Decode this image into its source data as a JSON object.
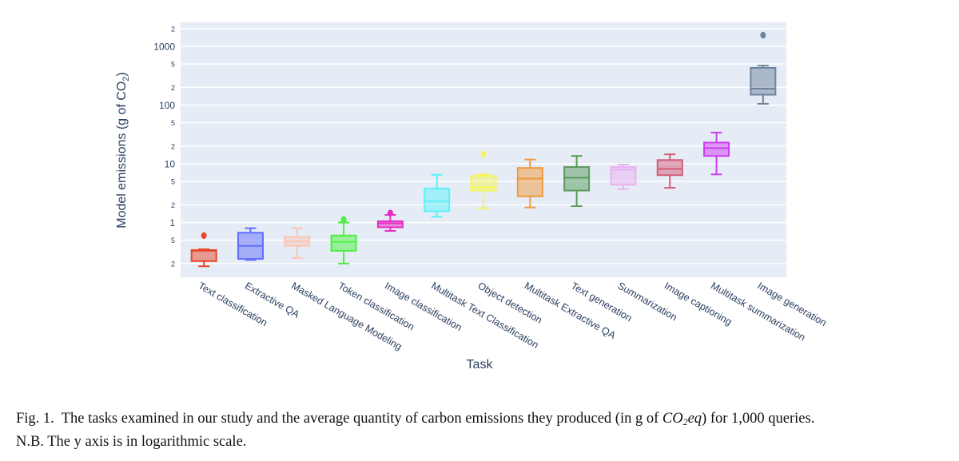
{
  "chart_data": {
    "type": "box",
    "title": "",
    "xlabel": "Task",
    "ylabel": "Model emissions (g of CO",
    "ylabel_sub": "2",
    "ylabel_end": ")",
    "yscale": "log",
    "ylim": [
      0.14,
      2400
    ],
    "grid": true,
    "legend": "none",
    "y_ticks": [
      {
        "value": 0.2,
        "label": "2",
        "major": false
      },
      {
        "value": 0.5,
        "label": "5",
        "major": false
      },
      {
        "value": 1,
        "label": "1",
        "major": true
      },
      {
        "value": 2,
        "label": "2",
        "major": false
      },
      {
        "value": 5,
        "label": "5",
        "major": false
      },
      {
        "value": 10,
        "label": "10",
        "major": true
      },
      {
        "value": 20,
        "label": "2",
        "major": false
      },
      {
        "value": 50,
        "label": "5",
        "major": false
      },
      {
        "value": 100,
        "label": "100",
        "major": true
      },
      {
        "value": 200,
        "label": "2",
        "major": false
      },
      {
        "value": 500,
        "label": "5",
        "major": false
      },
      {
        "value": 1000,
        "label": "1000",
        "major": true
      },
      {
        "value": 2000,
        "label": "2",
        "major": false
      }
    ],
    "categories": [
      "Text classification",
      "Extractive QA",
      "Masked Language Modeling",
      "Token classification",
      "Image classification",
      "Multitask Text Classification",
      "Object detection",
      "Multitask Extractive QA",
      "Text generation",
      "Summarization",
      "Image captioning",
      "Multitask summarization",
      "Image generation"
    ],
    "boxes": [
      {
        "task": "Text classification",
        "color": "#e8472b",
        "lower": 0.18,
        "q1": 0.22,
        "median": 0.33,
        "q3": 0.34,
        "upper": 0.35,
        "outliers": [
          0.6
        ]
      },
      {
        "task": "Extractive QA",
        "color": "#636efa",
        "lower": 0.23,
        "q1": 0.24,
        "median": 0.4,
        "q3": 0.67,
        "upper": 0.8,
        "outliers": []
      },
      {
        "task": "Masked Language Modeling",
        "color": "#f9c6b4",
        "lower": 0.25,
        "q1": 0.4,
        "median": 0.48,
        "q3": 0.57,
        "upper": 0.8,
        "outliers": []
      },
      {
        "task": "Token classification",
        "color": "#4cf03f",
        "lower": 0.2,
        "q1": 0.33,
        "median": 0.47,
        "q3": 0.6,
        "upper": 1.0,
        "outliers": [
          1.12
        ]
      },
      {
        "task": "Image classification",
        "color": "#e62bc4",
        "lower": 0.72,
        "q1": 0.83,
        "median": 0.97,
        "q3": 1.05,
        "upper": 1.35,
        "outliers": [
          1.45
        ]
      },
      {
        "task": "Multitask Text Classification",
        "color": "#5ef1f7",
        "lower": 1.25,
        "q1": 1.55,
        "median": 2.3,
        "q3": 3.8,
        "upper": 6.5,
        "outliers": []
      },
      {
        "task": "Object detection",
        "color": "#f6f45a",
        "lower": 1.75,
        "q1": 3.5,
        "median": 4.0,
        "q3": 6.2,
        "upper": 6.6,
        "outliers": [
          14.5
        ]
      },
      {
        "task": "Multitask Extractive QA",
        "color": "#ef9a3c",
        "lower": 1.8,
        "q1": 2.8,
        "median": 5.6,
        "q3": 8.5,
        "upper": 11.8,
        "outliers": []
      },
      {
        "task": "Text generation",
        "color": "#5a9a5a",
        "lower": 1.9,
        "q1": 3.5,
        "median": 5.8,
        "q3": 8.8,
        "upper": 13.6,
        "outliers": []
      },
      {
        "task": "Summarization",
        "color": "#e8b2f0",
        "lower": 3.7,
        "q1": 4.4,
        "median": 7.9,
        "q3": 8.8,
        "upper": 9.7,
        "outliers": []
      },
      {
        "task": "Image captioning",
        "color": "#d35c78",
        "lower": 3.9,
        "q1": 6.4,
        "median": 8.2,
        "q3": 11.6,
        "upper": 14.5,
        "outliers": []
      },
      {
        "task": "Multitask summarization",
        "color": "#cc3ef0",
        "lower": 6.6,
        "q1": 13.6,
        "median": 18.5,
        "q3": 23,
        "upper": 34,
        "outliers": []
      },
      {
        "task": "Image generation",
        "color": "#6f849c",
        "lower": 105,
        "q1": 150,
        "median": 190,
        "q3": 430,
        "upper": 470,
        "outliers": [
          1550
        ]
      }
    ]
  },
  "caption": {
    "prefix": "Fig. 1.",
    "text_before": "The tasks examined in our study and the average quantity of carbon emissions they produced (in g of ",
    "formula_main": "CO",
    "formula_sub": "2",
    "formula_end": "eq",
    "text_after": ") for 1,000 queries.",
    "line2": "N.B. The y axis is in logarithmic scale."
  }
}
